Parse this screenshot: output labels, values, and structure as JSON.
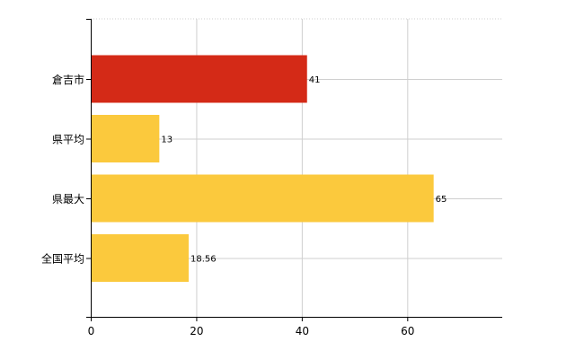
{
  "chart_data": {
    "type": "bar",
    "orientation": "horizontal",
    "categories": [
      "倉吉市",
      "県平均",
      "県最大",
      "全国平均"
    ],
    "values": [
      41,
      13,
      65,
      18.56
    ],
    "value_labels": [
      "41",
      "13",
      "65",
      "18.56"
    ],
    "bar_colors": [
      "#d42a17",
      "#fbc93d",
      "#fbc93d",
      "#fbc93d"
    ],
    "title": "",
    "xlabel": "",
    "ylabel": "",
    "xlim": [
      0,
      78
    ],
    "x_ticks": [
      0,
      20,
      40,
      60
    ],
    "x_tick_labels": [
      "0",
      "20",
      "40",
      "60"
    ],
    "grid": true,
    "legend": "none"
  }
}
